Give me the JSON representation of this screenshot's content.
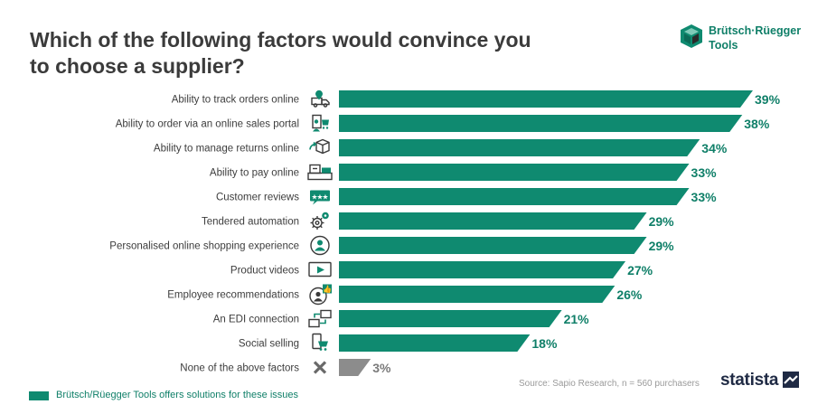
{
  "title": "Which of the following factors would convince you to choose a supplier?",
  "logo": {
    "line1": "Brütsch·Rüegger",
    "line2": "Tools"
  },
  "source": "Source: Sapio Research, n = 560 purchasers",
  "brand": "statista",
  "legend": {
    "label": "Brütsch/Rüegger Tools offers solutions for these issues"
  },
  "colors": {
    "solution": "#0f8a70",
    "other": "#8c8c8c",
    "label": "#0f7f68",
    "icon": "#3a3a3a"
  },
  "chart_data": {
    "type": "bar",
    "orientation": "horizontal",
    "unit": "%",
    "xlim": [
      0,
      39
    ],
    "grid": false,
    "legend_position": "bottom-left",
    "categories": [
      "Ability to track orders online",
      "Ability to order via an online sales portal",
      "Ability to manage returns online",
      "Ability to pay online",
      "Customer reviews",
      "Tendered automation",
      "Personalised online shopping experience",
      "Product videos",
      "Employee recommendations",
      "An EDI connection",
      "Social selling",
      "None of the above factors"
    ],
    "values": [
      39,
      38,
      34,
      33,
      33,
      29,
      29,
      27,
      26,
      21,
      18,
      3
    ],
    "data_labels": [
      "39%",
      "38%",
      "34%",
      "33%",
      "33%",
      "29%",
      "29%",
      "27%",
      "26%",
      "21%",
      "18%",
      "3%"
    ],
    "solution_flags": [
      true,
      true,
      true,
      true,
      true,
      true,
      true,
      true,
      true,
      true,
      true,
      false
    ],
    "icons": [
      "truck-location-icon",
      "online-shop-icon",
      "return-box-icon",
      "payment-terminal-icon",
      "rating-stars-icon",
      "automation-gears-icon",
      "user-profile-icon",
      "video-play-icon",
      "employee-thumbs-up-icon",
      "edi-connection-icon",
      "social-cart-icon",
      "cross-icon"
    ]
  }
}
